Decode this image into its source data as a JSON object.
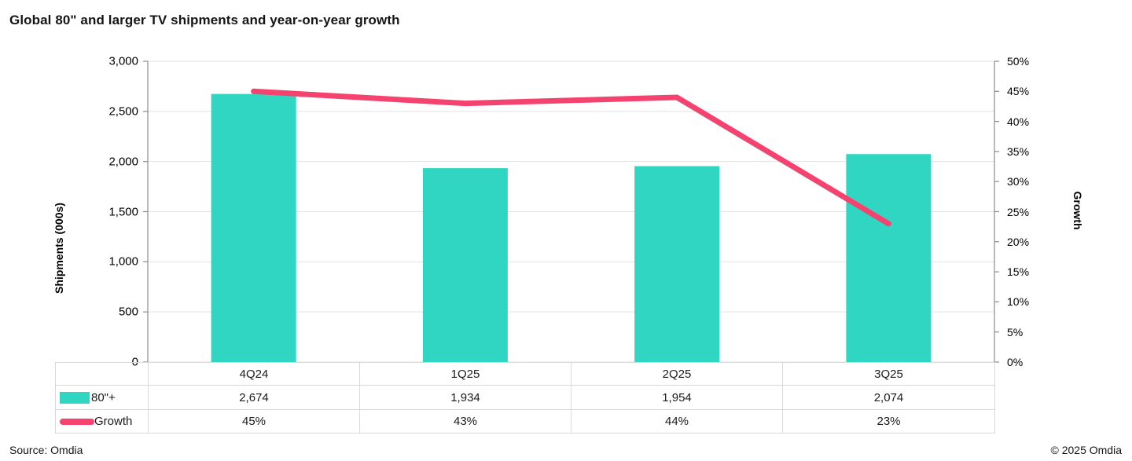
{
  "title": "Global 80\" and larger TV shipments and year-on-year growth",
  "chart_data": {
    "type": "bar",
    "subtype": "combo-bar-line-dual-axis",
    "categories": [
      "4Q24",
      "1Q25",
      "2Q25",
      "3Q25"
    ],
    "series": [
      {
        "name": "80\"+",
        "type": "bar",
        "axis": "left",
        "values": [
          2674,
          1934,
          1954,
          2074
        ]
      },
      {
        "name": "Growth",
        "type": "line",
        "axis": "right",
        "values": [
          45,
          43,
          44,
          23
        ],
        "unit": "%"
      }
    ],
    "left_axis": {
      "title": "Shipments (000s)",
      "min": 0,
      "max": 3000,
      "step": 500,
      "tick_values": [
        3000,
        2500,
        2000,
        1500,
        1000,
        500,
        0
      ],
      "tick_labels": [
        "3,000",
        "2,500",
        "2,000",
        "1,500",
        "1,000",
        "500",
        "0"
      ]
    },
    "right_axis": {
      "title": "Growth",
      "min": 0,
      "max": 50,
      "step": 5,
      "tick_values": [
        50,
        45,
        40,
        35,
        30,
        25,
        20,
        15,
        10,
        5,
        0
      ],
      "tick_labels": [
        "50%",
        "45%",
        "40%",
        "35%",
        "30%",
        "25%",
        "20%",
        "15%",
        "10%",
        "5%",
        "0%"
      ]
    },
    "grid": true,
    "legend_position": "table-left",
    "colors": {
      "bar": "#31D6C2",
      "line": "#F4436F",
      "gridline": "#E2E2E2",
      "axis": "#8C8C8C",
      "table_border": "#D9D9D9"
    }
  },
  "table": {
    "header": [
      "4Q24",
      "1Q25",
      "2Q25",
      "3Q25"
    ],
    "rows": [
      {
        "label": "80\"+",
        "values": [
          "2,674",
          "1,934",
          "1,954",
          "2,074"
        ]
      },
      {
        "label": "Growth",
        "values": [
          "45%",
          "43%",
          "44%",
          "23%"
        ]
      }
    ]
  },
  "footer": {
    "source": "Source: Omdia",
    "copyright": "© 2025 Omdia"
  }
}
